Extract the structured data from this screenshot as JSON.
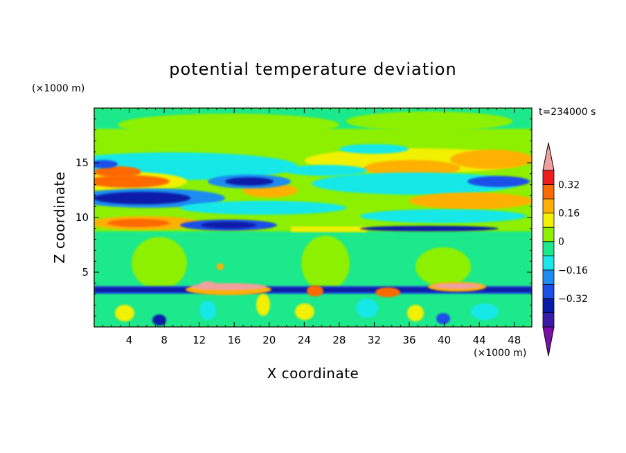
{
  "chart_data": {
    "type": "heatmap",
    "title": "potential temperature deviation",
    "xlabel": "X coordinate",
    "ylabel": "Z coordinate",
    "x_unit": "(×1000 m)",
    "y_unit": "(×1000 m)",
    "time_label": "t=234000 s",
    "xlim": [
      0,
      50
    ],
    "ylim": [
      0,
      20
    ],
    "x_ticks": [
      4,
      8,
      12,
      16,
      20,
      24,
      28,
      32,
      36,
      40,
      44,
      48
    ],
    "y_ticks": [
      5,
      10,
      15
    ],
    "colorbar": {
      "levels": [
        -0.48,
        -0.4,
        -0.32,
        -0.24,
        -0.16,
        -0.08,
        0,
        0.08,
        0.16,
        0.24,
        0.32,
        0.4
      ],
      "colors": [
        "#7a0ea6",
        "#3a1aa8",
        "#0a1aa8",
        "#1c4fe8",
        "#1e8cf0",
        "#19e8e8",
        "#1ce88c",
        "#8cf000",
        "#f0f000",
        "#ffb000",
        "#ff6a00",
        "#ee1c1c",
        "#f0a0a0"
      ],
      "labels": [
        "-0.32",
        "-0.16",
        "0",
        "0.16",
        "0.32"
      ],
      "label_values": [
        -0.32,
        -0.16,
        0,
        0.16,
        0.32
      ]
    },
    "background_level": "0 to 0.08",
    "features": [
      {
        "z_range": [
          3.2,
          3.8
        ],
        "value": -0.3
      },
      {
        "z_range": [
          11.5,
          12.3
        ],
        "value": -0.3
      },
      {
        "z_range": [
          13.0,
          13.8
        ],
        "value": 0.3
      },
      {
        "z_range": [
          9.1,
          9.6
        ],
        "value": 0.25
      },
      {
        "x_range": [
          10,
          22
        ],
        "z_range": [
          3.3,
          4.3
        ],
        "value": 0.42
      },
      {
        "x_range": [
          38,
          45
        ],
        "z_range": [
          3.4,
          4.0
        ],
        "value": 0.42
      }
    ]
  }
}
